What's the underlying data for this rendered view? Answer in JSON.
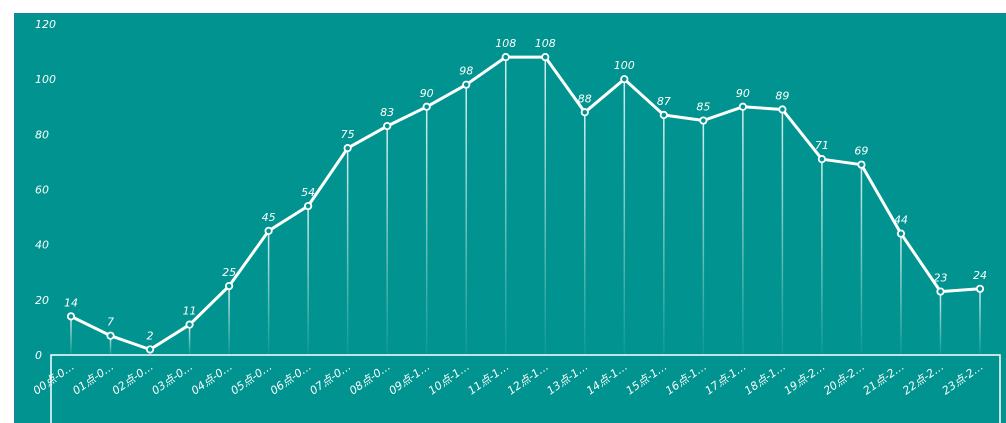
{
  "chart_data": {
    "type": "line",
    "title": "",
    "xlabel": "",
    "ylabel": "",
    "ylim": [
      0,
      120
    ],
    "yticks": [
      "0",
      "20",
      "40",
      "60",
      "80",
      "100",
      "120"
    ],
    "categories": [
      "00点-0…",
      "01点-0…",
      "02点-0…",
      "03点-0…",
      "04点-0…",
      "05点-0…",
      "06点-0…",
      "07点-0…",
      "08点-0…",
      "09点-1…",
      "10点-1…",
      "11点-1…",
      "12点-1…",
      "13点-1…",
      "14点-1…",
      "15点-1…",
      "16点-1…",
      "17点-1…",
      "18点-1…",
      "19点-2…",
      "20点-2…",
      "21点-2…",
      "22点-2…",
      "23点-2…"
    ],
    "values": [
      14,
      7,
      2,
      11,
      25,
      45,
      54,
      75,
      83,
      90,
      98,
      108,
      108,
      88,
      100,
      87,
      85,
      90,
      89,
      71,
      69,
      44,
      23,
      24
    ],
    "colors": {
      "background": "#00938f",
      "line": "#ffffff",
      "axis": "#ffffff"
    }
  }
}
